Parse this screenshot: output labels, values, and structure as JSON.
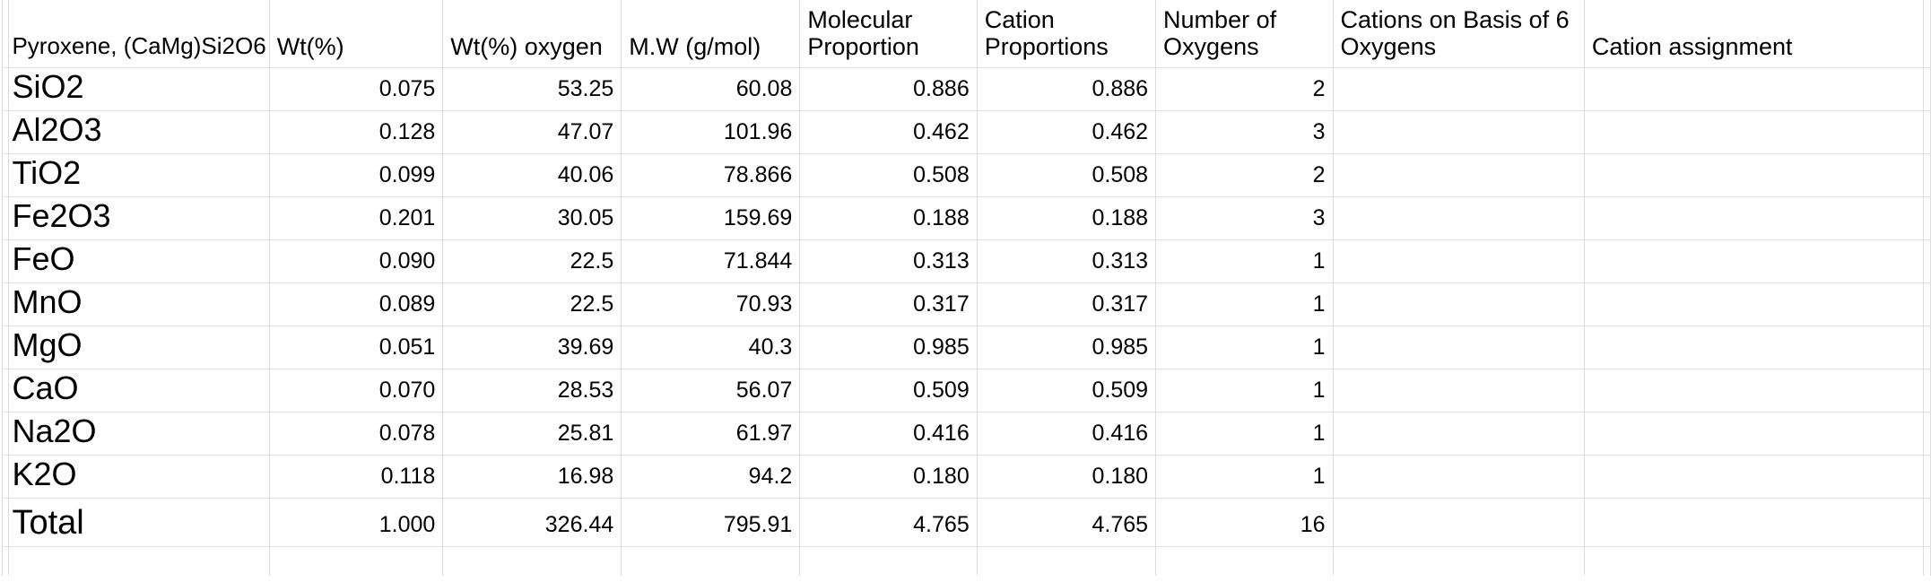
{
  "sheet": {
    "corner_label": "Pyroxene, (CaMg)Si2O6",
    "columns": [
      "Wt(%)",
      "Wt(%) oxygen",
      "M.W (g/mol)",
      "Molecular\nProportion",
      "Cation\nProportions",
      "Number of\nOxygens",
      "Cations on Basis of 6\nOxygens",
      "Cation assignment"
    ],
    "rows": [
      {
        "label": "SiO2",
        "values": [
          "0.075",
          "53.25",
          "60.08",
          "0.886",
          "0.886",
          "2",
          "",
          ""
        ]
      },
      {
        "label": "Al2O3",
        "values": [
          "0.128",
          "47.07",
          "101.96",
          "0.462",
          "0.462",
          "3",
          "",
          ""
        ]
      },
      {
        "label": "TiO2",
        "values": [
          "0.099",
          "40.06",
          "78.866",
          "0.508",
          "0.508",
          "2",
          "",
          ""
        ]
      },
      {
        "label": "Fe2O3",
        "values": [
          "0.201",
          "30.05",
          "159.69",
          "0.188",
          "0.188",
          "3",
          "",
          ""
        ]
      },
      {
        "label": "FeO",
        "values": [
          "0.090",
          "22.5",
          "71.844",
          "0.313",
          "0.313",
          "1",
          "",
          ""
        ]
      },
      {
        "label": "MnO",
        "values": [
          "0.089",
          "22.5",
          "70.93",
          "0.317",
          "0.317",
          "1",
          "",
          ""
        ]
      },
      {
        "label": "MgO",
        "values": [
          "0.051",
          "39.69",
          "40.3",
          "0.985",
          "0.985",
          "1",
          "",
          ""
        ]
      },
      {
        "label": "CaO",
        "values": [
          "0.070",
          "28.53",
          "56.07",
          "0.509",
          "0.509",
          "1",
          "",
          ""
        ]
      },
      {
        "label": "Na2O",
        "values": [
          "0.078",
          "25.81",
          "61.97",
          "0.416",
          "0.416",
          "1",
          "",
          ""
        ]
      },
      {
        "label": "K2O",
        "values": [
          "0.118",
          "16.98",
          "94.2",
          "0.180",
          "0.180",
          "1",
          "",
          ""
        ]
      },
      {
        "label": "Total",
        "values": [
          "1.000",
          "326.44",
          "795.91",
          "4.765",
          "4.765",
          "16",
          "",
          ""
        ],
        "is_total": true
      }
    ],
    "colors": {
      "gridline_vertical": "#dcdcdc",
      "gridline_horizontal": "#e0e0e0",
      "text": "#000000",
      "background": "#ffffff"
    }
  }
}
